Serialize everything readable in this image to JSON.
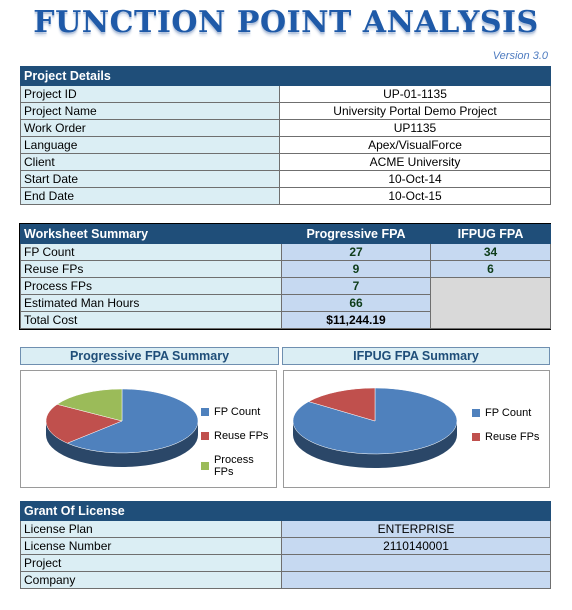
{
  "header": {
    "title": "FUNCTION POINT ANALYSIS",
    "version": "Version 3.0"
  },
  "project_details": {
    "heading": "Project Details",
    "rows": [
      {
        "label": "Project ID",
        "value": "UP-01-1135"
      },
      {
        "label": "Project Name",
        "value": "University Portal Demo Project"
      },
      {
        "label": "Work Order",
        "value": "UP1135"
      },
      {
        "label": "Language",
        "value": "Apex/VisualForce"
      },
      {
        "label": "Client",
        "value": "ACME University"
      },
      {
        "label": "Start Date",
        "value": "10-Oct-14"
      },
      {
        "label": "End Date",
        "value": "10-Oct-15"
      }
    ]
  },
  "worksheet_summary": {
    "heading": "Worksheet Summary",
    "col_progressive": "Progressive FPA",
    "col_ifpug": "IFPUG FPA",
    "rows": [
      {
        "label": "FP Count",
        "progressive": "27",
        "ifpug": "34"
      },
      {
        "label": "Reuse FPs",
        "progressive": "9",
        "ifpug": "6"
      },
      {
        "label": "Process FPs",
        "progressive": "7"
      },
      {
        "label": "Estimated Man Hours",
        "progressive": "66"
      },
      {
        "label": "Total Cost",
        "progressive": "$11,244.19"
      }
    ]
  },
  "charts": {
    "progressive_title": "Progressive FPA Summary",
    "ifpug_title": "IFPUG FPA Summary",
    "colors": {
      "fp_count": "#4f81bd",
      "reuse": "#c0504d",
      "process": "#9bbb59"
    }
  },
  "chart_data": [
    {
      "type": "pie",
      "title": "Progressive FPA Summary",
      "categories": [
        "FP Count",
        "Reuse FPs",
        "Process FPs"
      ],
      "values": [
        27,
        9,
        7
      ],
      "legend": "right"
    },
    {
      "type": "pie",
      "title": "IFPUG FPA Summary",
      "categories": [
        "FP Count",
        "Reuse FPs"
      ],
      "values": [
        34,
        6
      ],
      "legend": "right"
    }
  ],
  "license": {
    "heading": "Grant Of License",
    "rows": [
      {
        "label": "License Plan",
        "value": "ENTERPRISE"
      },
      {
        "label": "License Number",
        "value": "2110140001"
      },
      {
        "label": "Project",
        "value": ""
      },
      {
        "label": "Company",
        "value": ""
      }
    ]
  }
}
